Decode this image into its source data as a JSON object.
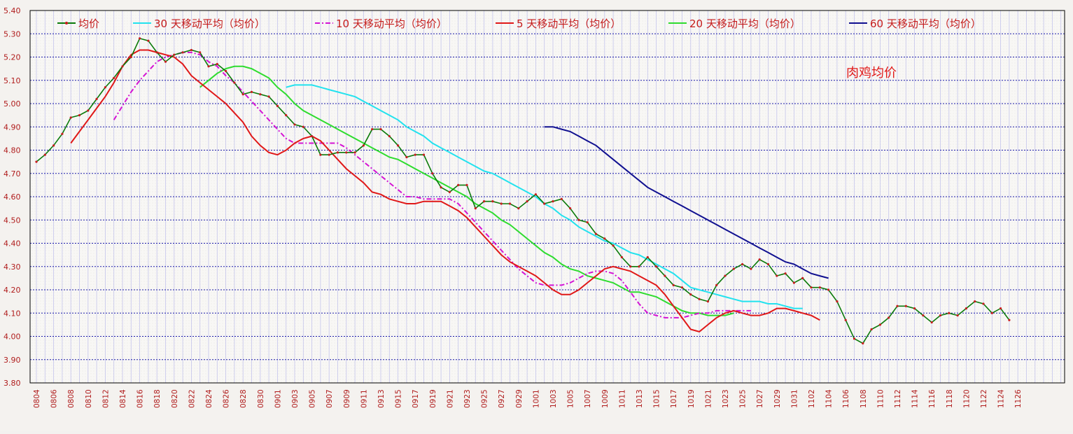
{
  "chart_data": {
    "type": "line",
    "title": "肉鸡均价",
    "ylim": [
      3.8,
      5.4
    ],
    "y_ticks": [
      "5.40",
      "5.30",
      "5.20",
      "5.10",
      "5.00",
      "4.90",
      "4.80",
      "4.70",
      "4.60",
      "4.50",
      "4.40",
      "4.30",
      "4.20",
      "4.10",
      "4.00",
      "3.90",
      "3.80"
    ],
    "x_tick_labels": [
      "0804",
      "0806",
      "0808",
      "0810",
      "0812",
      "0814",
      "0816",
      "0818",
      "0820",
      "0822",
      "0824",
      "0826",
      "0828",
      "0830",
      "0901",
      "0903",
      "0905",
      "0907",
      "0909",
      "0911",
      "0913",
      "0915",
      "0917",
      "0919",
      "0921",
      "0923",
      "0925",
      "0927",
      "0929",
      "1001",
      "1003",
      "1005",
      "1007",
      "1009",
      "1011",
      "1013",
      "1015",
      "1017",
      "1019",
      "1021",
      "1023",
      "1025",
      "1027",
      "1029",
      "1031",
      "1102",
      "1104",
      "1106",
      "1108",
      "1110",
      "1112",
      "1114",
      "1116",
      "1118",
      "1120",
      "1122",
      "1124",
      "1126"
    ],
    "grid": true,
    "legend_position": "top",
    "series": [
      {
        "name": "均价",
        "color": "#0a7a0a",
        "marker_color": "#c81e1e",
        "x_start": 0,
        "values": [
          4.75,
          4.78,
          4.82,
          4.87,
          4.94,
          4.95,
          4.97,
          5.02,
          5.07,
          5.11,
          5.16,
          5.2,
          5.28,
          5.27,
          5.22,
          5.18,
          5.21,
          5.22,
          5.23,
          5.22,
          5.16,
          5.17,
          5.14,
          5.09,
          5.04,
          5.05,
          5.04,
          5.03,
          4.99,
          4.95,
          4.91,
          4.9,
          4.86,
          4.78,
          4.78,
          4.79,
          4.79,
          4.79,
          4.82,
          4.89,
          4.89,
          4.86,
          4.82,
          4.77,
          4.78,
          4.78,
          4.7,
          4.64,
          4.62,
          4.65,
          4.65,
          4.55,
          4.58,
          4.58,
          4.57,
          4.57,
          4.55,
          4.58,
          4.61,
          4.57,
          4.58,
          4.59,
          4.55,
          4.5,
          4.49,
          4.44,
          4.42,
          4.39,
          4.34,
          4.3,
          4.3,
          4.34,
          4.3,
          4.26,
          4.22,
          4.21,
          4.18,
          4.16,
          4.15,
          4.22,
          4.26,
          4.29,
          4.31,
          4.29,
          4.33,
          4.31,
          4.26,
          4.27,
          4.23,
          4.25,
          4.21,
          4.21,
          4.2,
          4.15,
          4.07,
          3.99,
          3.97,
          4.03,
          4.05,
          4.08,
          4.13,
          4.13,
          4.12,
          4.09,
          4.06,
          4.09,
          4.1,
          4.09,
          4.12,
          4.15,
          4.14,
          4.1,
          4.12,
          4.07
        ]
      },
      {
        "name": "30 天移动平均（均价）",
        "color": "#22e2ee",
        "x_start": 29,
        "values": [
          5.07,
          5.08,
          5.08,
          5.08,
          5.07,
          5.06,
          5.05,
          5.04,
          5.03,
          5.01,
          4.99,
          4.97,
          4.95,
          4.93,
          4.9,
          4.88,
          4.86,
          4.83,
          4.81,
          4.79,
          4.77,
          4.75,
          4.73,
          4.71,
          4.7,
          4.68,
          4.66,
          4.64,
          4.62,
          4.6,
          4.57,
          4.55,
          4.52,
          4.5,
          4.47,
          4.45,
          4.43,
          4.41,
          4.4,
          4.38,
          4.36,
          4.35,
          4.33,
          4.31,
          4.29,
          4.27,
          4.24,
          4.21,
          4.2,
          4.19,
          4.18,
          4.17,
          4.16,
          4.15,
          4.15,
          4.15,
          4.14,
          4.14,
          4.13,
          4.12,
          4.12
        ]
      },
      {
        "name": "10 天移动平均（均价）",
        "color": "#d414d4",
        "dashed": true,
        "x_start": 9,
        "values": [
          4.93,
          4.99,
          5.05,
          5.1,
          5.14,
          5.18,
          5.2,
          5.21,
          5.22,
          5.22,
          5.21,
          5.18,
          5.16,
          5.12,
          5.09,
          5.05,
          5.01,
          4.97,
          4.93,
          4.89,
          4.85,
          4.83,
          4.83,
          4.83,
          4.83,
          4.83,
          4.83,
          4.81,
          4.78,
          4.75,
          4.72,
          4.69,
          4.66,
          4.63,
          4.6,
          4.6,
          4.59,
          4.59,
          4.59,
          4.59,
          4.57,
          4.53,
          4.49,
          4.45,
          4.41,
          4.37,
          4.33,
          4.29,
          4.26,
          4.23,
          4.22,
          4.22,
          4.22,
          4.23,
          4.25,
          4.27,
          4.28,
          4.28,
          4.27,
          4.24,
          4.19,
          4.14,
          4.1,
          4.09,
          4.08,
          4.08,
          4.08,
          4.09,
          4.1,
          4.1,
          4.11,
          4.11,
          4.11,
          4.11,
          4.11
        ]
      },
      {
        "name": "5 天移动平均（均价）",
        "color": "#e01818",
        "x_start": 4,
        "values": [
          4.83,
          4.88,
          4.93,
          4.98,
          5.03,
          5.09,
          5.16,
          5.21,
          5.23,
          5.23,
          5.22,
          5.21,
          5.2,
          5.17,
          5.12,
          5.09,
          5.06,
          5.03,
          5.0,
          4.96,
          4.92,
          4.86,
          4.82,
          4.79,
          4.78,
          4.8,
          4.83,
          4.85,
          4.86,
          4.84,
          4.8,
          4.76,
          4.72,
          4.69,
          4.66,
          4.62,
          4.61,
          4.59,
          4.58,
          4.57,
          4.57,
          4.58,
          4.58,
          4.58,
          4.56,
          4.54,
          4.51,
          4.47,
          4.43,
          4.39,
          4.35,
          4.32,
          4.3,
          4.28,
          4.26,
          4.23,
          4.2,
          4.18,
          4.18,
          4.2,
          4.23,
          4.26,
          4.29,
          4.3,
          4.29,
          4.28,
          4.26,
          4.24,
          4.22,
          4.18,
          4.13,
          4.08,
          4.03,
          4.02,
          4.05,
          4.08,
          4.1,
          4.11,
          4.1,
          4.09,
          4.09,
          4.1,
          4.12,
          4.12,
          4.11,
          4.1,
          4.09,
          4.07
        ]
      },
      {
        "name": "20 天移动平均（均价）",
        "color": "#2edc2e",
        "x_start": 19,
        "values": [
          5.07,
          5.1,
          5.13,
          5.15,
          5.16,
          5.16,
          5.15,
          5.13,
          5.11,
          5.07,
          5.04,
          5.0,
          4.97,
          4.95,
          4.93,
          4.91,
          4.89,
          4.87,
          4.85,
          4.83,
          4.81,
          4.79,
          4.77,
          4.76,
          4.74,
          4.72,
          4.7,
          4.68,
          4.66,
          4.64,
          4.62,
          4.6,
          4.57,
          4.55,
          4.53,
          4.5,
          4.48,
          4.45,
          4.42,
          4.39,
          4.36,
          4.34,
          4.31,
          4.29,
          4.28,
          4.26,
          4.25,
          4.24,
          4.23,
          4.21,
          4.19,
          4.19,
          4.18,
          4.17,
          4.15,
          4.13,
          4.11,
          4.1,
          4.1,
          4.09,
          4.09,
          4.09,
          4.1
        ]
      },
      {
        "name": "60 天移动平均（均价）",
        "color": "#101090",
        "x_start": 59,
        "values": [
          4.9,
          4.9,
          4.89,
          4.88,
          4.86,
          4.84,
          4.82,
          4.79,
          4.76,
          4.73,
          4.7,
          4.67,
          4.64,
          4.62,
          4.6,
          4.58,
          4.56,
          4.54,
          4.52,
          4.5,
          4.48,
          4.46,
          4.44,
          4.42,
          4.4,
          4.38,
          4.36,
          4.34,
          4.32,
          4.31,
          4.29,
          4.27,
          4.26,
          4.25
        ]
      }
    ]
  }
}
